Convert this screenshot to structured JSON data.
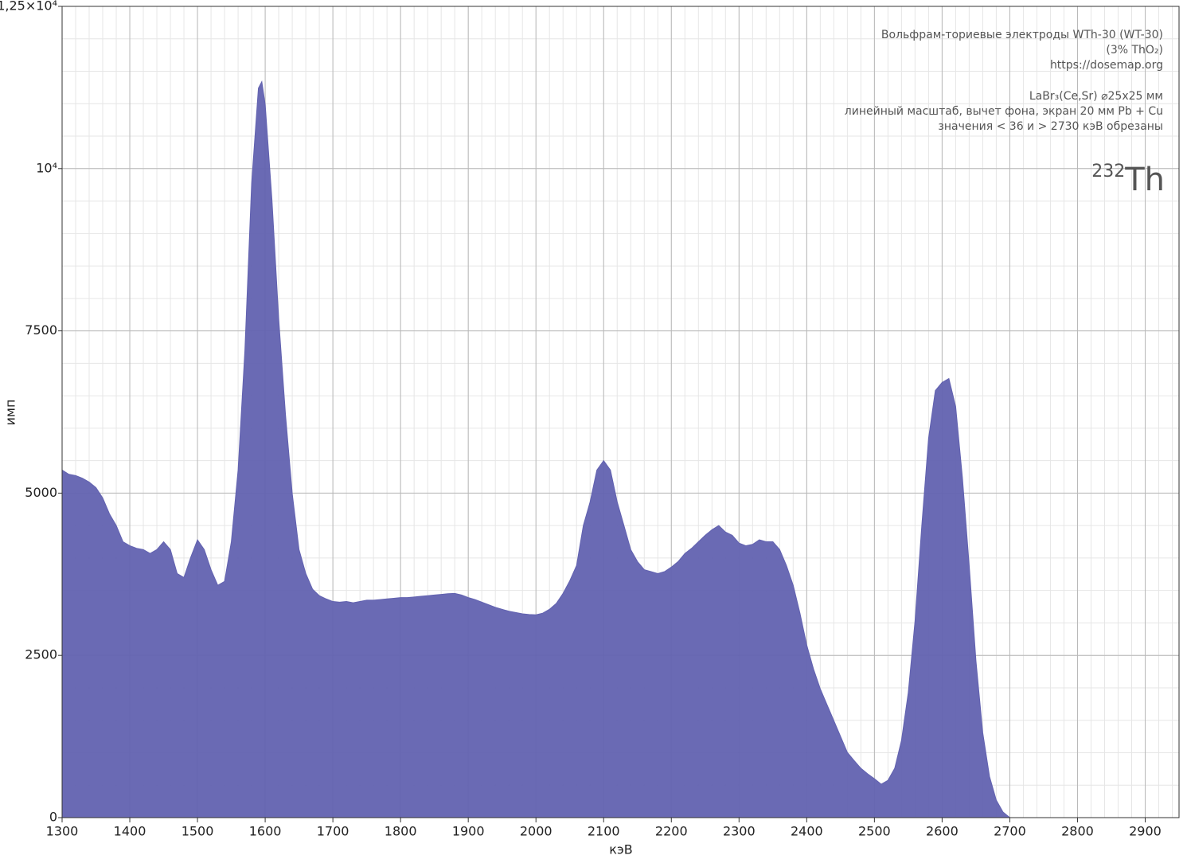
{
  "chart_data": {
    "type": "area",
    "annotations": [
      "Вольфрам-ториевые электроды WTh-30 (WT-30)",
      "(3% ThO₂)",
      "https://dosemap.org",
      "LaBr₃(Ce,Sr) ⌀25x25 мм",
      "линейный масштаб, вычет фона, экран 20 мм Pb + Cu",
      "значения < 36 и > 2730 кэВ обрезаны"
    ],
    "isotope_mass": "232",
    "isotope_symbol": "Th",
    "x_label": "кэВ",
    "y_label": "имп",
    "color": "#6262b0",
    "x": [
      1300,
      1310,
      1320,
      1330,
      1340,
      1350,
      1360,
      1370,
      1380,
      1390,
      1400,
      1410,
      1420,
      1430,
      1440,
      1450,
      1460,
      1470,
      1480,
      1490,
      1500,
      1510,
      1520,
      1530,
      1540,
      1550,
      1560,
      1570,
      1580,
      1590,
      1595,
      1600,
      1610,
      1620,
      1630,
      1640,
      1650,
      1660,
      1670,
      1680,
      1690,
      1700,
      1710,
      1720,
      1730,
      1740,
      1750,
      1760,
      1770,
      1780,
      1790,
      1800,
      1810,
      1820,
      1830,
      1840,
      1850,
      1860,
      1870,
      1880,
      1890,
      1900,
      1910,
      1920,
      1930,
      1940,
      1950,
      1960,
      1970,
      1980,
      1990,
      2000,
      2010,
      2020,
      2030,
      2040,
      2050,
      2060,
      2070,
      2080,
      2090,
      2100,
      2110,
      2120,
      2130,
      2140,
      2150,
      2160,
      2170,
      2180,
      2190,
      2200,
      2210,
      2220,
      2230,
      2240,
      2250,
      2260,
      2270,
      2280,
      2290,
      2300,
      2310,
      2320,
      2330,
      2340,
      2350,
      2360,
      2370,
      2380,
      2390,
      2400,
      2410,
      2420,
      2430,
      2440,
      2450,
      2460,
      2470,
      2480,
      2490,
      2500,
      2510,
      2520,
      2530,
      2540,
      2550,
      2560,
      2570,
      2580,
      2590,
      2600,
      2610,
      2620,
      2630,
      2640,
      2650,
      2660,
      2670,
      2680,
      2690,
      2700
    ],
    "values": [
      5355,
      5290,
      5270,
      5230,
      5170,
      5085,
      4925,
      4680,
      4500,
      4250,
      4190,
      4150,
      4130,
      4070,
      4130,
      4250,
      4130,
      3760,
      3700,
      4010,
      4280,
      4130,
      3820,
      3580,
      3640,
      4250,
      5355,
      7190,
      9770,
      11240,
      11340,
      10990,
      9520,
      7680,
      6210,
      4990,
      4130,
      3760,
      3520,
      3420,
      3370,
      3330,
      3320,
      3330,
      3310,
      3330,
      3350,
      3350,
      3360,
      3370,
      3380,
      3390,
      3390,
      3400,
      3410,
      3420,
      3430,
      3440,
      3450,
      3455,
      3430,
      3390,
      3360,
      3320,
      3280,
      3240,
      3210,
      3180,
      3160,
      3140,
      3130,
      3125,
      3150,
      3210,
      3300,
      3455,
      3650,
      3885,
      4500,
      4865,
      5355,
      5500,
      5355,
      4865,
      4500,
      4130,
      3945,
      3820,
      3790,
      3760,
      3790,
      3860,
      3945,
      4070,
      4150,
      4250,
      4350,
      4435,
      4500,
      4400,
      4350,
      4230,
      4190,
      4210,
      4280,
      4250,
      4250,
      4130,
      3885,
      3580,
      3150,
      2660,
      2290,
      1985,
      1740,
      1495,
      1250,
      1005,
      880,
      760,
      675,
      600,
      515,
      575,
      760,
      1190,
      1925,
      3030,
      4500,
      5845,
      6580,
      6705,
      6765,
      6335,
      5235,
      3885,
      2415,
      1310,
      635,
      270,
      85,
      0
    ],
    "xlim": [
      1300,
      2950
    ],
    "ylim": [
      0,
      12500
    ],
    "xticks": [
      1300,
      1400,
      1500,
      1600,
      1700,
      1800,
      1900,
      2000,
      2100,
      2200,
      2300,
      2400,
      2500,
      2600,
      2700,
      2800,
      2900
    ],
    "yticks": [
      0,
      2500,
      5000,
      7500,
      {
        "value": 10000,
        "label": "10⁴"
      },
      {
        "value": 12500,
        "label": "1,25×10⁴"
      }
    ],
    "grid": true,
    "minor_xstep": 20,
    "minor_ystep": 500
  }
}
